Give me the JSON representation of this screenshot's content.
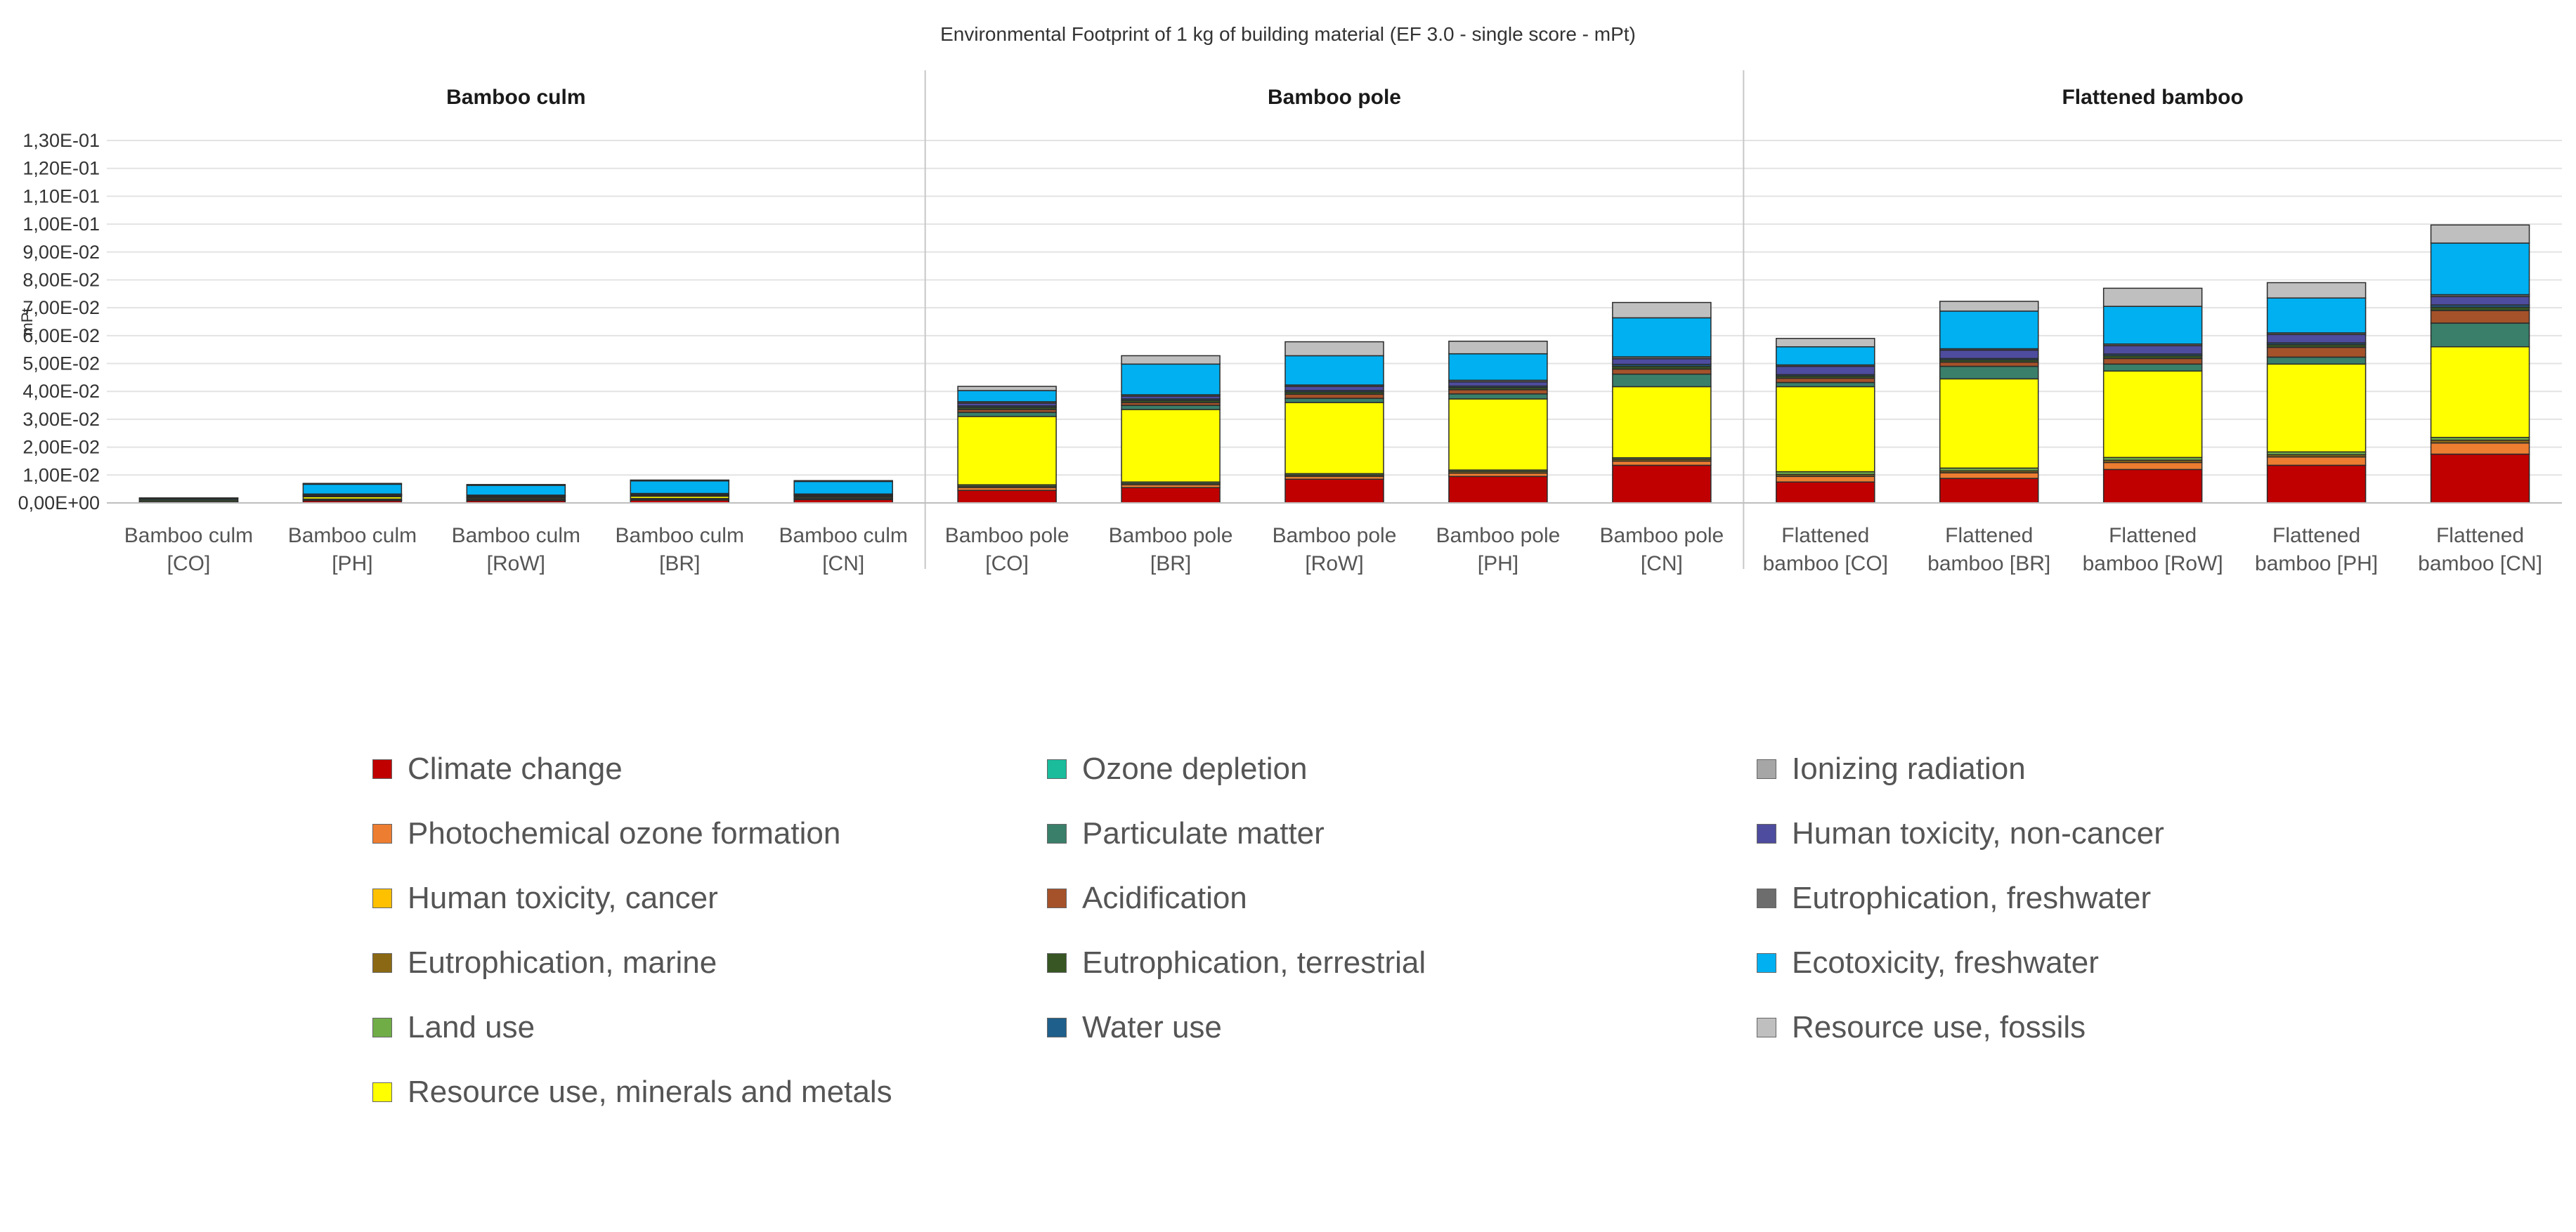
{
  "chart_data": {
    "type": "bar",
    "stacked": true,
    "title": "Environmental Footprint of 1 kg of building material (EF 3.0 - single score - mPt)",
    "ylabel": "mPt",
    "xlabel": "",
    "ylim": [
      0,
      0.13
    ],
    "y_ticks": [
      0,
      0.01,
      0.02,
      0.03,
      0.04,
      0.05,
      0.06,
      0.07,
      0.08,
      0.09,
      0.1,
      0.11,
      0.12,
      0.13
    ],
    "y_tick_labels": [
      "0,00E+00",
      "1,00E-02",
      "2,00E-02",
      "3,00E-02",
      "4,00E-02",
      "5,00E-02",
      "6,00E-02",
      "7,00E-02",
      "8,00E-02",
      "9,00E-02",
      "1,00E-01",
      "1,10E-01",
      "1,20E-01",
      "1,30E-01"
    ],
    "grid": true,
    "legend_position": "bottom",
    "groups": [
      {
        "name": "Bamboo culm",
        "start": 0,
        "count": 5
      },
      {
        "name": "Bamboo pole",
        "start": 5,
        "count": 5
      },
      {
        "name": "Flattened bamboo",
        "start": 10,
        "count": 5
      }
    ],
    "categories": [
      [
        "Bamboo culm",
        "[CO]"
      ],
      [
        "Bamboo culm",
        "[PH]"
      ],
      [
        "Bamboo culm",
        "[RoW]"
      ],
      [
        "Bamboo culm",
        "[BR]"
      ],
      [
        "Bamboo culm",
        "[CN]"
      ],
      [
        "Bamboo pole",
        "[CO]"
      ],
      [
        "Bamboo pole",
        "[BR]"
      ],
      [
        "Bamboo pole",
        "[RoW]"
      ],
      [
        "Bamboo pole",
        "[PH]"
      ],
      [
        "Bamboo pole",
        "[CN]"
      ],
      [
        "Flattened",
        "bamboo [CO]"
      ],
      [
        "Flattened",
        "bamboo [BR]"
      ],
      [
        "Flattened",
        "bamboo [RoW]"
      ],
      [
        "Flattened",
        "bamboo [PH]"
      ],
      [
        "Flattened",
        "bamboo [CN]"
      ]
    ],
    "series": [
      {
        "name": "Climate change",
        "color": "#c00000",
        "values": [
          0.0003,
          0.0008,
          0.0008,
          0.001,
          0.0012,
          0.0045,
          0.0055,
          0.0085,
          0.0095,
          0.0135,
          0.0075,
          0.0088,
          0.012,
          0.0135,
          0.0175
        ]
      },
      {
        "name": "Photochemical ozone formation",
        "color": "#ed7d31",
        "values": [
          0.0001,
          0.0001,
          0.0001,
          0.0001,
          0.0001,
          0.001,
          0.001,
          0.001,
          0.0012,
          0.0015,
          0.002,
          0.002,
          0.0025,
          0.003,
          0.004
        ]
      },
      {
        "name": "Human toxicity, cancer",
        "color": "#ffc000",
        "values": [
          0,
          0,
          0,
          0,
          0,
          0,
          0,
          0,
          0,
          0,
          0,
          0,
          0,
          0,
          0
        ]
      },
      {
        "name": "Eutrophication, marine",
        "color": "#8b6914",
        "values": [
          0.0001,
          0.0001,
          0.0001,
          0.0001,
          0.0001,
          0.0005,
          0.0005,
          0.0005,
          0.0006,
          0.0007,
          0.0007,
          0.0007,
          0.0008,
          0.0008,
          0.001
        ]
      },
      {
        "name": "Land use",
        "color": "#70ad47",
        "values": [
          0.0005,
          0.0004,
          0.0004,
          0.0004,
          0.0004,
          0.0005,
          0.0005,
          0.0005,
          0.0005,
          0.0005,
          0.001,
          0.001,
          0.001,
          0.001,
          0.001
        ]
      },
      {
        "name": "Resource use, minerals and metals",
        "color": "#ffff00",
        "values": [
          0,
          0.0008,
          0.0004,
          0.0008,
          0.0004,
          0.0245,
          0.026,
          0.0255,
          0.0255,
          0.0255,
          0.0305,
          0.032,
          0.031,
          0.0315,
          0.0325
        ]
      },
      {
        "name": "Ozone depletion",
        "color": "#1abc9c",
        "values": [
          0,
          0,
          0,
          0,
          0,
          0,
          0,
          0,
          0,
          0,
          0,
          0,
          0,
          0,
          0
        ]
      },
      {
        "name": "Particulate matter",
        "color": "#3a7f6a",
        "values": [
          0.0005,
          0.0003,
          0.0003,
          0.0003,
          0.0003,
          0.0015,
          0.0015,
          0.0015,
          0.0018,
          0.0045,
          0.0015,
          0.0045,
          0.0025,
          0.0025,
          0.0085
        ]
      },
      {
        "name": "Acidification",
        "color": "#a5522a",
        "values": [
          0,
          0.0001,
          0.0001,
          0.0001,
          0.0001,
          0.001,
          0.001,
          0.0015,
          0.0015,
          0.0018,
          0.0015,
          0.0015,
          0.002,
          0.0035,
          0.0045
        ]
      },
      {
        "name": "Eutrophication, terrestrial",
        "color": "#375623",
        "values": [
          0.0001,
          0.0002,
          0.0002,
          0.0002,
          0.0002,
          0.0008,
          0.0008,
          0.0008,
          0.0008,
          0.001,
          0.0008,
          0.0008,
          0.001,
          0.001,
          0.0012
        ]
      },
      {
        "name": "Water use",
        "color": "#1f5f8b",
        "values": [
          0.0001,
          0.0002,
          0.0002,
          0.0002,
          0.0002,
          0.0005,
          0.0005,
          0.0005,
          0.0005,
          0.0007,
          0.0005,
          0.0005,
          0.0006,
          0.0006,
          0.0008
        ]
      },
      {
        "name": "Ionizing radiation",
        "color": "#a6a6a6",
        "values": [
          0,
          0,
          0,
          0,
          0,
          0,
          0,
          0,
          0,
          0,
          0,
          0,
          0,
          0,
          0
        ]
      },
      {
        "name": "Human toxicity, non-cancer",
        "color": "#4e4c9e",
        "values": [
          0.0001,
          0.0001,
          0.0001,
          0.0001,
          0.0001,
          0.001,
          0.001,
          0.0015,
          0.0015,
          0.002,
          0.003,
          0.003,
          0.003,
          0.003,
          0.003
        ]
      },
      {
        "name": "Eutrophication, freshwater",
        "color": "#6d6d6d",
        "values": [
          0,
          0.0001,
          0.0001,
          0.0001,
          0.0001,
          0.0005,
          0.0005,
          0.0005,
          0.0006,
          0.0007,
          0.0005,
          0.0005,
          0.0006,
          0.0006,
          0.0007
        ]
      },
      {
        "name": "Ecotoxicity, freshwater",
        "color": "#00b0f0",
        "values": [
          0,
          0.0035,
          0.0035,
          0.0045,
          0.0045,
          0.004,
          0.011,
          0.0105,
          0.0095,
          0.014,
          0.0065,
          0.0135,
          0.0135,
          0.0125,
          0.0185
        ]
      },
      {
        "name": "Resource use, fossils",
        "color": "#bfbfbf",
        "values": [
          0,
          0.0003,
          0.0003,
          0.0003,
          0.0003,
          0.0015,
          0.003,
          0.005,
          0.0045,
          0.0055,
          0.003,
          0.0035,
          0.0065,
          0.0055,
          0.0065
        ]
      }
    ]
  },
  "legend": [
    {
      "label": "Climate change",
      "color": "#c00000"
    },
    {
      "label": "Ozone depletion",
      "color": "#1abc9c"
    },
    {
      "label": "Ionizing radiation",
      "color": "#a6a6a6"
    },
    {
      "label": "Photochemical ozone formation",
      "color": "#ed7d31"
    },
    {
      "label": "Particulate matter",
      "color": "#3a7f6a"
    },
    {
      "label": "Human toxicity, non-cancer",
      "color": "#4e4c9e"
    },
    {
      "label": "Human toxicity, cancer",
      "color": "#ffc000"
    },
    {
      "label": "Acidification",
      "color": "#a5522a"
    },
    {
      "label": "Eutrophication, freshwater",
      "color": "#6d6d6d"
    },
    {
      "label": "Eutrophication, marine",
      "color": "#8b6914"
    },
    {
      "label": "Eutrophication, terrestrial",
      "color": "#375623"
    },
    {
      "label": "Ecotoxicity, freshwater",
      "color": "#00b0f0"
    },
    {
      "label": "Land use",
      "color": "#70ad47"
    },
    {
      "label": "Water use",
      "color": "#1f5f8b"
    },
    {
      "label": "Resource use, fossils",
      "color": "#bfbfbf"
    },
    {
      "label": "Resource use, minerals and metals",
      "color": "#ffff00"
    }
  ]
}
